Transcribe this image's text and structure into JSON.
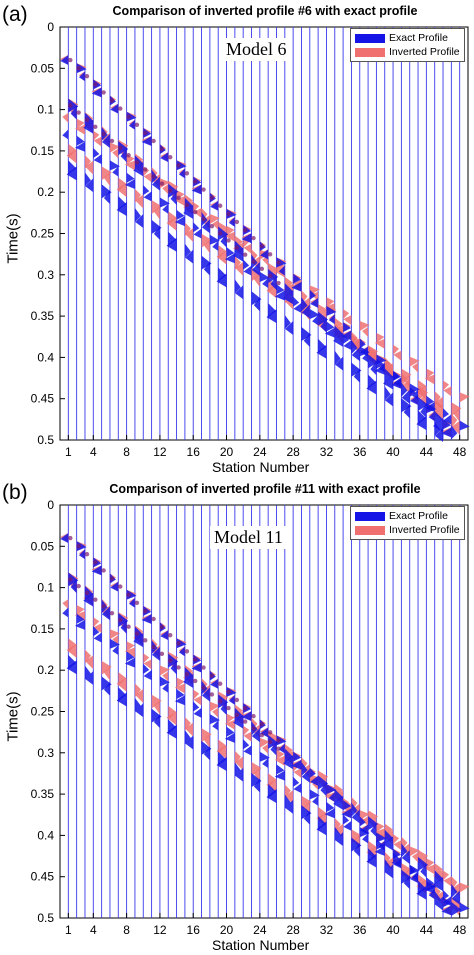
{
  "colors": {
    "exact": "#1414e6",
    "inverted": "#f07070",
    "overlap": "#7a1a6e",
    "trace": "#3a3aee"
  },
  "chart_data": [
    {
      "type": "line",
      "panel_label": "(a)",
      "title": "Comparison of inverted profile #6 with exact profile",
      "annotation": "Model 6",
      "xlabel": "Station Number",
      "ylabel": "Time(s)",
      "xlim": [
        0,
        49
      ],
      "ylim": [
        0,
        0.5
      ],
      "y_reversed": true,
      "xticks": [
        1,
        4,
        8,
        12,
        16,
        20,
        24,
        28,
        32,
        36,
        40,
        44,
        48
      ],
      "yticks": [
        "0",
        "0.05",
        "0.1",
        "0.15",
        "0.2",
        "0.25",
        "0.3",
        "0.35",
        "0.4",
        "0.45",
        "0.5"
      ],
      "legend": {
        "position": "top-right",
        "entries": [
          "Exact Profile",
          "Inverted Profile"
        ]
      },
      "series": [
        {
          "name": "Exact Profile",
          "events": [
            {
              "t0": 0.04,
              "slope": 0.0098
            },
            {
              "t0": 0.095,
              "slope": 0.0086
            },
            {
              "t0": 0.13,
              "slope": 0.0075
            },
            {
              "t0": 0.17,
              "slope": 0.0072
            }
          ]
        },
        {
          "name": "Inverted Profile",
          "events": [
            {
              "t0": 0.04,
              "slope": 0.0098
            },
            {
              "t0": 0.095,
              "slope": 0.0083
            },
            {
              "t0": 0.11,
              "slope": 0.0072
            },
            {
              "t0": 0.15,
              "slope": 0.0068
            }
          ]
        }
      ]
    },
    {
      "type": "line",
      "panel_label": "(b)",
      "title": "Comparison of inverted profile #11 with exact profile",
      "annotation": "Model 11",
      "xlabel": "Station Number",
      "ylabel": "Time(s)",
      "xlim": [
        0,
        49
      ],
      "ylim": [
        0,
        0.5
      ],
      "y_reversed": true,
      "xticks": [
        1,
        4,
        8,
        12,
        16,
        20,
        24,
        28,
        32,
        36,
        40,
        44,
        48
      ],
      "yticks": [
        "0",
        "0.05",
        "0.1",
        "0.15",
        "0.2",
        "0.25",
        "0.3",
        "0.35",
        "0.4",
        "0.45",
        "0.5"
      ],
      "legend": {
        "position": "top-right",
        "entries": [
          "Exact Profile",
          "Inverted Profile"
        ]
      },
      "series": [
        {
          "name": "Exact Profile",
          "events": [
            {
              "t0": 0.04,
              "slope": 0.0098
            },
            {
              "t0": 0.09,
              "slope": 0.0082
            },
            {
              "t0": 0.13,
              "slope": 0.0076
            },
            {
              "t0": 0.19,
              "slope": 0.0065
            }
          ]
        },
        {
          "name": "Inverted Profile",
          "events": [
            {
              "t0": 0.04,
              "slope": 0.0098
            },
            {
              "t0": 0.09,
              "slope": 0.008
            },
            {
              "t0": 0.12,
              "slope": 0.0073
            },
            {
              "t0": 0.17,
              "slope": 0.0068
            }
          ]
        }
      ]
    }
  ]
}
